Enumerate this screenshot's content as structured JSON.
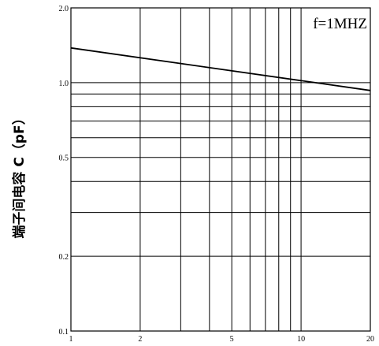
{
  "chart_data": {
    "type": "line",
    "title": "",
    "xlabel": "",
    "ylabel": "端子间电容 C（pF）",
    "annotation": "f=1MHZ",
    "x_scale": "log",
    "y_scale": "log",
    "xlim": [
      1,
      20
    ],
    "ylim": [
      0.1,
      2.0
    ],
    "x_ticks": [
      1,
      2,
      5,
      10,
      20
    ],
    "x_tick_labels": [
      "1",
      "2",
      "5",
      "10",
      "20"
    ],
    "y_ticks": [
      2.0,
      1.0,
      0.5,
      0.2,
      0.1
    ],
    "y_tick_labels": [
      "2.0",
      "1.0",
      "0.5",
      "0.2",
      "0.1"
    ],
    "grid": true,
    "series": [
      {
        "x": [
          1,
          20
        ],
        "y": [
          1.38,
          0.93
        ]
      }
    ]
  }
}
